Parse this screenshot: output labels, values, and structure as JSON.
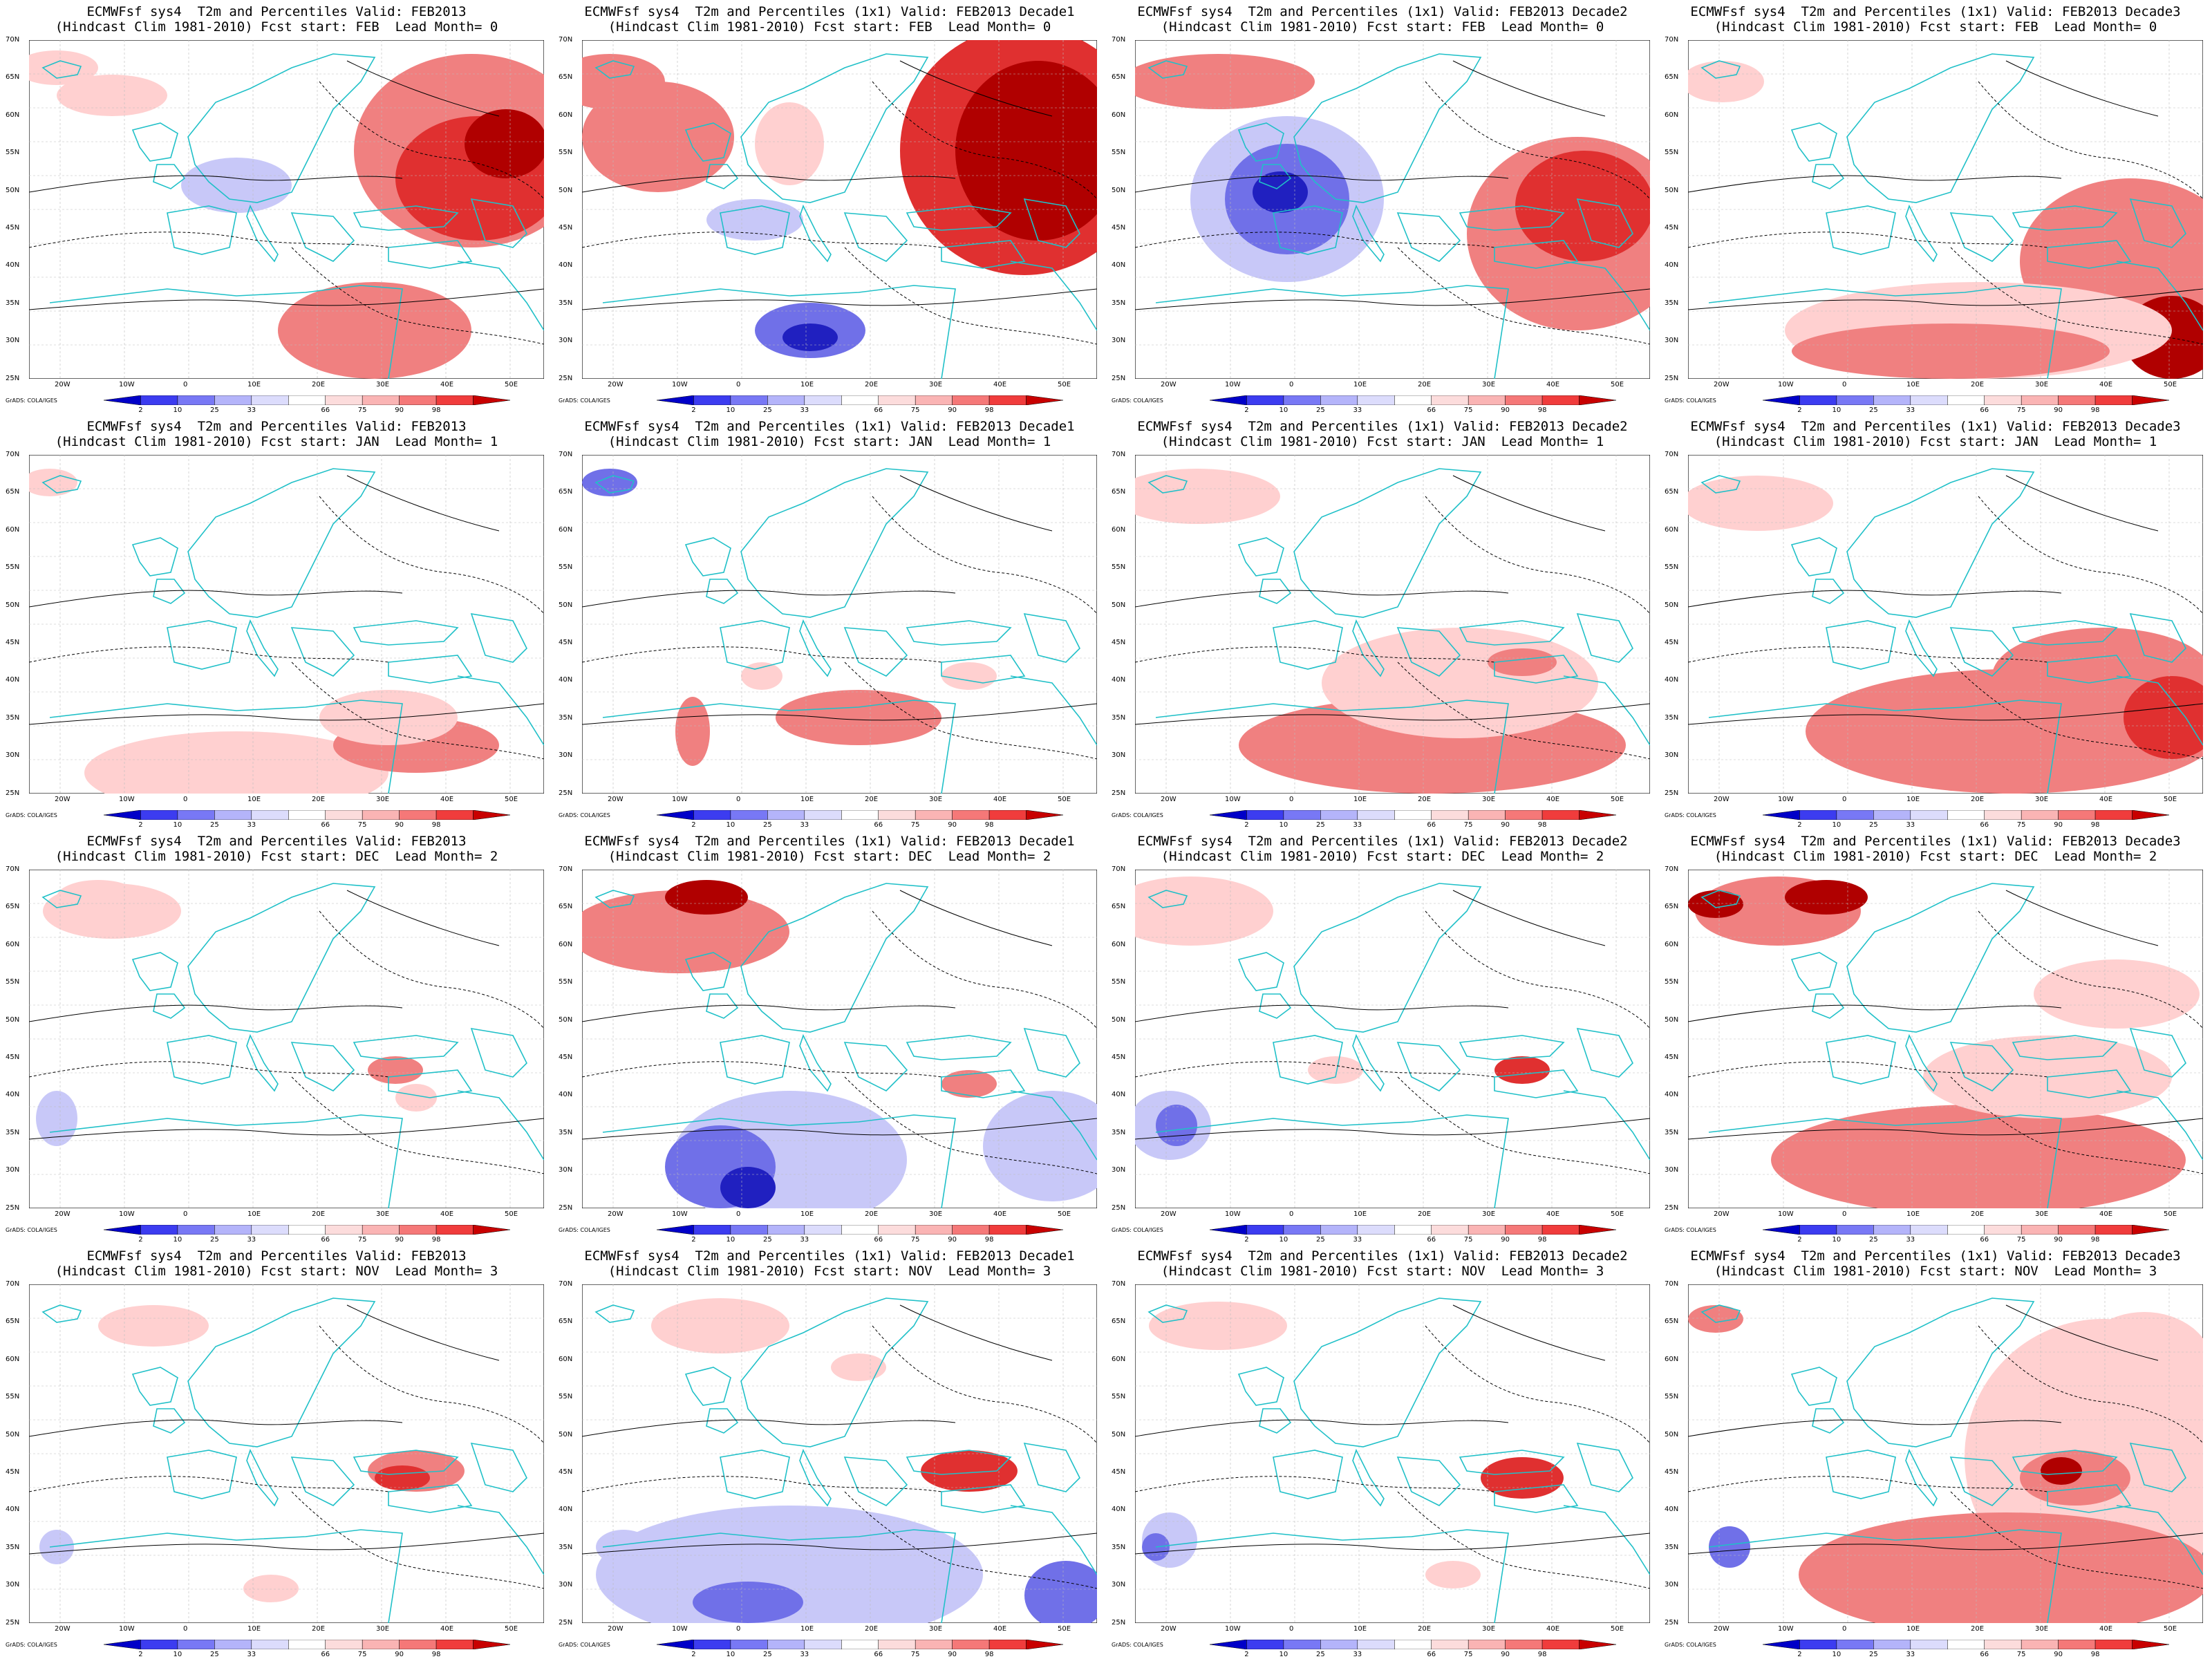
{
  "panels": [
    {
      "title1": "ECMWFsf sys4  T2m and Percentiles Valid: FEB2013",
      "title2": "(Hindcast Clim 1981-2010) Fcst start: FEB  Lead Month= 0"
    },
    {
      "title1": "ECMWFsf sys4  T2m and Percentiles (1x1) Valid: FEB2013 Decade1",
      "title2": "(Hindcast Clim 1981-2010) Fcst start: FEB  Lead Month= 0"
    },
    {
      "title1": "ECMWFsf sys4  T2m and Percentiles (1x1) Valid: FEB2013 Decade2",
      "title2": "(Hindcast Clim 1981-2010) Fcst start: FEB  Lead Month= 0"
    },
    {
      "title1": "ECMWFsf sys4  T2m and Percentiles (1x1) Valid: FEB2013 Decade3",
      "title2": "(Hindcast Clim 1981-2010) Fcst start: FEB  Lead Month= 0"
    },
    {
      "title1": "ECMWFsf sys4  T2m and Percentiles Valid: FEB2013",
      "title2": "(Hindcast Clim 1981-2010) Fcst start: JAN  Lead Month= 1"
    },
    {
      "title1": "ECMWFsf sys4  T2m and Percentiles (1x1) Valid: FEB2013 Decade1",
      "title2": "(Hindcast Clim 1981-2010) Fcst start: JAN  Lead Month= 1"
    },
    {
      "title1": "ECMWFsf sys4  T2m and Percentiles (1x1) Valid: FEB2013 Decade2",
      "title2": "(Hindcast Clim 1981-2010) Fcst start: JAN  Lead Month= 1"
    },
    {
      "title1": "ECMWFsf sys4  T2m and Percentiles (1x1) Valid: FEB2013 Decade3",
      "title2": "(Hindcast Clim 1981-2010) Fcst start: JAN  Lead Month= 1"
    },
    {
      "title1": "ECMWFsf sys4  T2m and Percentiles Valid: FEB2013",
      "title2": "(Hindcast Clim 1981-2010) Fcst start: DEC  Lead Month= 2"
    },
    {
      "title1": "ECMWFsf sys4  T2m and Percentiles (1x1) Valid: FEB2013 Decade1",
      "title2": "(Hindcast Clim 1981-2010) Fcst start: DEC  Lead Month= 2"
    },
    {
      "title1": "ECMWFsf sys4  T2m and Percentiles (1x1) Valid: FEB2013 Decade2",
      "title2": "(Hindcast Clim 1981-2010) Fcst start: DEC  Lead Month= 2"
    },
    {
      "title1": "ECMWFsf sys4  T2m and Percentiles (1x1) Valid: FEB2013 Decade3",
      "title2": "(Hindcast Clim 1981-2010) Fcst start: DEC  Lead Month= 2"
    },
    {
      "title1": "ECMWFsf sys4  T2m and Percentiles Valid: FEB2013",
      "title2": "(Hindcast Clim 1981-2010) Fcst start: NOV  Lead Month= 3"
    },
    {
      "title1": "ECMWFsf sys4  T2m and Percentiles (1x1) Valid: FEB2013 Decade1",
      "title2": "(Hindcast Clim 1981-2010) Fcst start: NOV  Lead Month= 3"
    },
    {
      "title1": "ECMWFsf sys4  T2m and Percentiles (1x1) Valid: FEB2013 Decade2",
      "title2": "(Hindcast Clim 1981-2010) Fcst start: NOV  Lead Month= 3"
    },
    {
      "title1": "ECMWFsf sys4  T2m and Percentiles (1x1) Valid: FEB2013 Decade3",
      "title2": "(Hindcast Clim 1981-2010) Fcst start: NOV  Lead Month= 3"
    }
  ],
  "lat_labels": [
    "70N",
    "65N",
    "60N",
    "55N",
    "50N",
    "45N",
    "40N",
    "35N",
    "30N",
    "25N"
  ],
  "lon_labels": [
    "20W",
    "10W",
    "0",
    "10E",
    "20E",
    "30E",
    "40E",
    "50E"
  ],
  "colorbar_labels": [
    "2",
    "10",
    "25",
    "33",
    "66",
    "75",
    "90",
    "98"
  ],
  "colorbar_colors": [
    "#0000c8",
    "#3c3cf0",
    "#7878f5",
    "#b4b4fa",
    "#dcdcfc",
    "#ffffff",
    "#fcdcdc",
    "#fab4b4",
    "#f57878",
    "#f03c3c",
    "#c80000"
  ],
  "credit": "GrADS: COLA/IGES",
  "colors": {
    "coast": "#20c0c8",
    "contour": "#000000"
  }
}
